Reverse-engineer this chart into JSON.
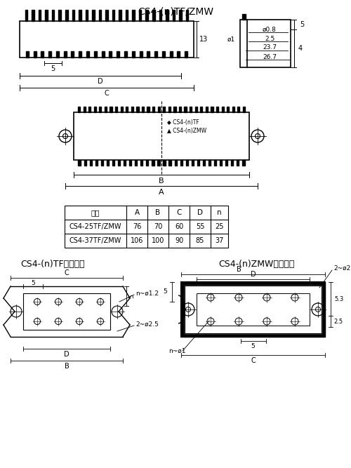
{
  "title": "CS4-(n)TF/ZMW",
  "bg_color": "#ffffff",
  "line_color": "#000000",
  "table_headers": [
    "规格",
    "A",
    "B",
    "C",
    "D",
    "n"
  ],
  "table_row1": [
    "CS4-25TF/ZMW",
    "76",
    "70",
    "60",
    "55",
    "25"
  ],
  "table_row2": [
    "CS4-37TF/ZMW",
    "106",
    "100",
    "90",
    "85",
    "37"
  ],
  "label_tf": "CS4-(n)TF安装尺寸",
  "label_zmw": "CS4-(n)ZMW安装尺寸"
}
